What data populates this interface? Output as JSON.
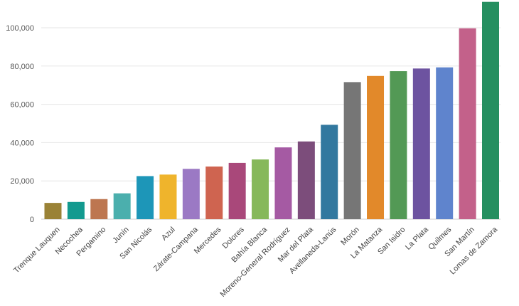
{
  "chart_data": {
    "type": "bar",
    "title": "",
    "xlabel": "",
    "ylabel": "",
    "ylim": [
      0,
      113000
    ],
    "grid": true,
    "yticks": [
      0,
      20000,
      40000,
      60000,
      80000,
      100000
    ],
    "ytick_labels": [
      "0",
      "20,000",
      "40,000",
      "60,000",
      "80,000",
      "100,000"
    ],
    "categories": [
      "Trenque Lauquen",
      "Necochea",
      "Pergamino",
      "Junín",
      "San Nicolás",
      "Azul",
      "Zárate-Campana",
      "Mercedes",
      "Dolores",
      "Bahía Blanca",
      "Moreno-General Rodríguez",
      "Mar del Plata",
      "Avellaneda-Lanús",
      "Morón",
      "La Matanza",
      "San Isidro",
      "La Plata",
      "Quilmes",
      "San Martín",
      "Lomas de Zamora"
    ],
    "values": [
      8500,
      9000,
      10500,
      13500,
      22500,
      23300,
      26300,
      27500,
      29400,
      31200,
      37500,
      40600,
      49300,
      71600,
      74800,
      77300,
      78700,
      79300,
      99700,
      113500
    ],
    "colors": [
      "#9a8236",
      "#139a8f",
      "#bd7650",
      "#4bafad",
      "#1d96b8",
      "#efb42c",
      "#9b79c4",
      "#cf6450",
      "#a9487a",
      "#86b85a",
      "#a55aa3",
      "#7c4d7b",
      "#32789f",
      "#767676",
      "#e2892a",
      "#539955",
      "#6d53a0",
      "#5f84cd",
      "#c3618a",
      "#258f60"
    ]
  }
}
